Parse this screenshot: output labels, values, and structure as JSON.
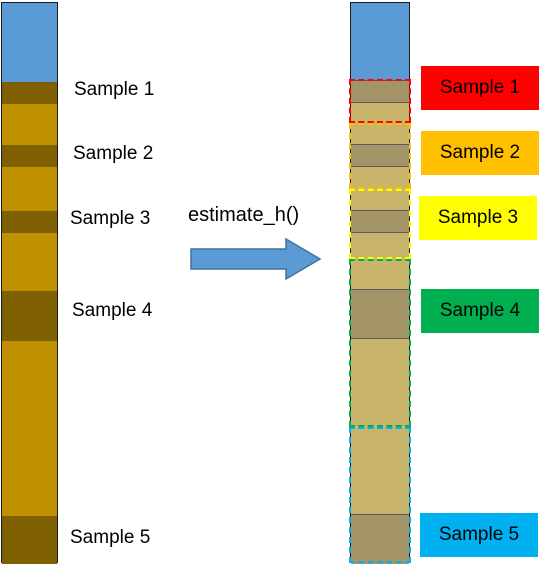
{
  "left_core": {
    "samples": [
      "Sample 1",
      "Sample 2",
      "Sample 3",
      "Sample 4",
      "Sample 5"
    ]
  },
  "process": {
    "function_label": "estimate_h()",
    "arrow_color": "#4a7ebb"
  },
  "right_core": {
    "groups": [
      {
        "label": "Sample 1",
        "color": "#ff0000",
        "text_color": "#000000"
      },
      {
        "label": "Sample 2",
        "color": "#ffc000",
        "text_color": "#000000"
      },
      {
        "label": "Sample 3",
        "color": "#ffff00",
        "text_color": "#000000"
      },
      {
        "label": "Sample 4",
        "color": "#00b050",
        "text_color": "#000000"
      },
      {
        "label": "Sample 5",
        "color": "#00b0f0",
        "text_color": "#000000"
      }
    ]
  }
}
